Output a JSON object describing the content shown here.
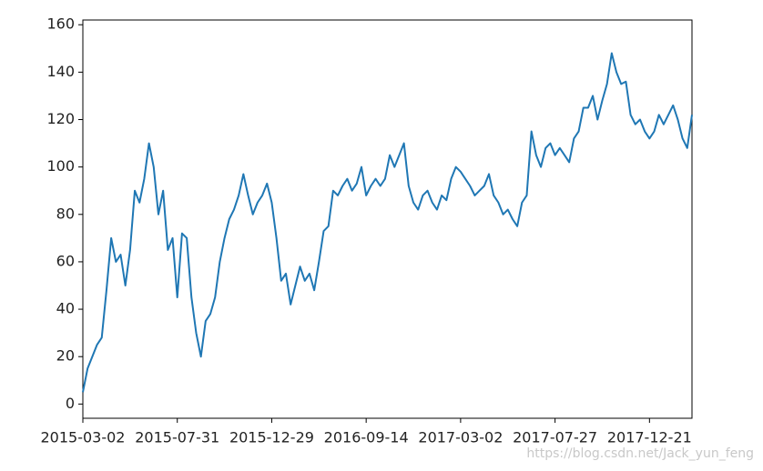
{
  "chart_data": {
    "type": "line",
    "x": [
      0,
      5,
      10,
      15,
      20,
      25,
      30,
      35,
      40,
      45,
      50,
      55,
      60,
      65,
      70,
      75,
      80,
      85,
      90,
      95,
      100,
      105,
      110,
      115,
      120,
      125,
      130,
      135,
      140,
      145,
      150,
      155,
      160,
      165,
      170,
      175,
      180,
      185,
      190,
      195,
      200,
      205,
      210,
      215,
      220,
      225,
      230,
      235,
      240,
      245,
      250,
      255,
      260,
      265,
      270,
      275,
      280,
      285,
      290,
      295,
      300,
      305,
      310,
      315,
      320,
      325,
      330,
      335,
      340,
      345,
      350,
      355,
      360,
      365,
      370,
      375,
      380,
      385,
      390,
      395,
      400,
      405,
      410,
      415,
      420,
      425,
      430,
      435,
      440,
      445,
      450,
      455,
      460,
      465,
      470,
      475,
      480,
      485,
      490,
      495,
      500,
      505,
      510,
      515,
      520,
      525,
      530,
      535,
      540,
      545,
      550,
      555,
      560,
      565,
      570,
      575,
      580,
      585,
      590,
      595,
      600,
      605,
      610,
      615,
      620,
      625,
      630,
      635,
      640,
      645
    ],
    "series": [
      {
        "color": "#1f77b4",
        "values": [
          5,
          15,
          20,
          25,
          28,
          48,
          70,
          60,
          63,
          50,
          65,
          90,
          85,
          95,
          110,
          100,
          80,
          90,
          65,
          70,
          45,
          72,
          70,
          45,
          30,
          20,
          35,
          38,
          45,
          60,
          70,
          78,
          82,
          88,
          97,
          88,
          80,
          85,
          88,
          93,
          85,
          70,
          52,
          55,
          42,
          50,
          58,
          52,
          55,
          48,
          60,
          73,
          75,
          90,
          88,
          92,
          95,
          90,
          93,
          100,
          88,
          92,
          95,
          92,
          95,
          105,
          100,
          105,
          110,
          92,
          85,
          82,
          88,
          90,
          85,
          82,
          88,
          86,
          95,
          100,
          98,
          95,
          92,
          88,
          90,
          92,
          97,
          88,
          85,
          80,
          82,
          78,
          75,
          85,
          88,
          115,
          105,
          100,
          108,
          110,
          105,
          108,
          105,
          102,
          112,
          115,
          125,
          125,
          130,
          120,
          128,
          135,
          148,
          140,
          135,
          136,
          122,
          118,
          120,
          115,
          112,
          115,
          122,
          118,
          122,
          126,
          120,
          112,
          108,
          122
        ]
      }
    ],
    "xlim": [
      0,
      645
    ],
    "xticks": [
      {
        "value": 0,
        "label": "2015-03-02"
      },
      {
        "value": 100,
        "label": "2015-07-31"
      },
      {
        "value": 200,
        "label": "2015-12-29"
      },
      {
        "value": 300,
        "label": "2016-09-14"
      },
      {
        "value": 400,
        "label": "2017-03-02"
      },
      {
        "value": 500,
        "label": "2017-07-27"
      },
      {
        "value": 600,
        "label": "2017-12-21"
      }
    ],
    "ylim": [
      -6,
      162
    ],
    "yticks": [
      0,
      20,
      40,
      60,
      80,
      100,
      120,
      140,
      160
    ],
    "watermark": "https://blog.csdn.net/Jack_yun_feng"
  }
}
